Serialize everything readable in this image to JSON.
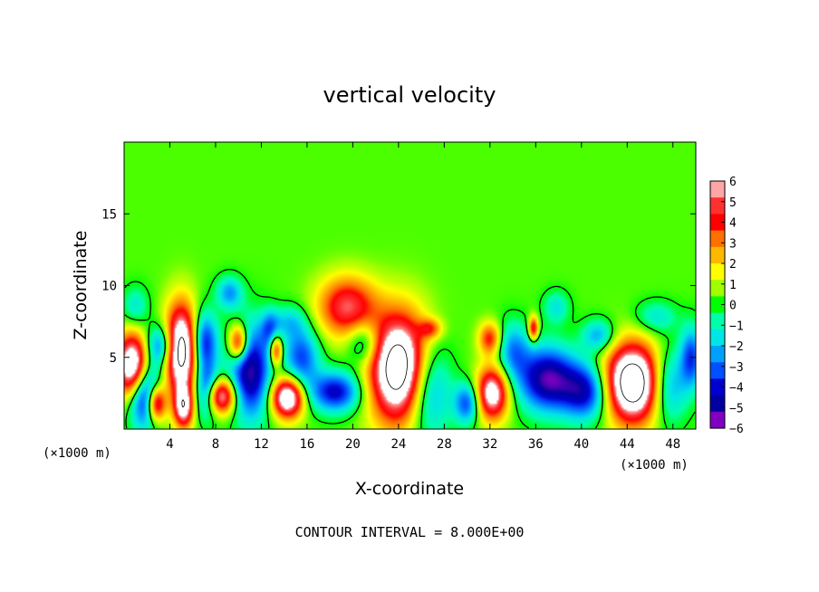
{
  "chart_data": {
    "type": "heatmap",
    "title": "vertical velocity",
    "xlabel": "X-coordinate",
    "ylabel": "Z-coordinate",
    "x_unit_left": "(×1000 m)",
    "x_unit_right": "(×1000 m)",
    "xlim": [
      0,
      50
    ],
    "ylim": [
      0,
      20
    ],
    "xticks": [
      4,
      8,
      12,
      16,
      20,
      24,
      28,
      32,
      36,
      40,
      44,
      48
    ],
    "yticks": [
      5,
      10,
      15
    ],
    "colorbar": {
      "min": -6,
      "max": 6,
      "ticks": [
        6,
        5,
        4,
        3,
        2,
        1,
        0,
        -1,
        -2,
        -3,
        -4,
        -5,
        -6
      ],
      "colors": [
        "#ffa5a5",
        "#ff3030",
        "#ff0000",
        "#ff7000",
        "#ffb800",
        "#ffff00",
        "#a0ff00",
        "#00ff00",
        "#00ffaa",
        "#00e6e6",
        "#00a0ff",
        "#0050ff",
        "#0000d0",
        "#0000a0",
        "#8000c0"
      ]
    },
    "background_value": 0.4,
    "features": [
      {
        "type": "updraft",
        "x": 0.8,
        "y": 4.3,
        "sx": 1.0,
        "sy": 1.6,
        "amp": 9
      },
      {
        "type": "updraft",
        "x": 2.8,
        "y": 1.8,
        "sx": 0.6,
        "sy": 0.9,
        "amp": 7
      },
      {
        "type": "updraft",
        "x": 5.0,
        "y": 5.5,
        "sx": 1.0,
        "sy": 2.2,
        "amp": 9
      },
      {
        "type": "updraft",
        "x": 5.2,
        "y": 1.5,
        "sx": 0.6,
        "sy": 1.0,
        "amp": 6
      },
      {
        "type": "updraft",
        "x": 8.3,
        "y": 2.3,
        "sx": 1.0,
        "sy": 0.9,
        "amp": 8
      },
      {
        "type": "updraft",
        "x": 10.0,
        "y": 6.0,
        "sx": 0.6,
        "sy": 0.9,
        "amp": 6
      },
      {
        "type": "updraft",
        "x": 13.3,
        "y": 5.5,
        "sx": 0.4,
        "sy": 0.8,
        "amp": 5
      },
      {
        "type": "updraft",
        "x": 14.3,
        "y": 2.2,
        "sx": 1.0,
        "sy": 1.0,
        "amp": 8
      },
      {
        "type": "updraft",
        "x": 19.5,
        "y": 8.5,
        "sx": 1.8,
        "sy": 1.5,
        "amp": 5
      },
      {
        "type": "updraft",
        "x": 24.2,
        "y": 4.2,
        "sx": 1.9,
        "sy": 2.6,
        "amp": 10
      },
      {
        "type": "updraft",
        "x": 32.2,
        "y": 2.5,
        "sx": 1.0,
        "sy": 1.3,
        "amp": 7
      },
      {
        "type": "updraft",
        "x": 32.0,
        "y": 6.3,
        "sx": 0.7,
        "sy": 0.8,
        "amp": 4
      },
      {
        "type": "updraft",
        "x": 35.8,
        "y": 7.0,
        "sx": 0.3,
        "sy": 0.6,
        "amp": 5
      },
      {
        "type": "updraft",
        "x": 44.5,
        "y": 3.2,
        "sx": 1.8,
        "sy": 1.9,
        "amp": 10
      },
      {
        "type": "updraft",
        "x": 26.8,
        "y": 7.0,
        "sx": 0.7,
        "sy": 0.5,
        "amp": 3
      },
      {
        "type": "downdraft",
        "x": 1.8,
        "y": 2.5,
        "sx": 1.0,
        "sy": 1.6,
        "amp": -7
      },
      {
        "type": "downdraft",
        "x": 3.2,
        "y": 5.8,
        "sx": 0.9,
        "sy": 1.0,
        "amp": -4
      },
      {
        "type": "downdraft",
        "x": 7.0,
        "y": 6.0,
        "sx": 0.8,
        "sy": 1.5,
        "amp": -5
      },
      {
        "type": "downdraft",
        "x": 7.3,
        "y": 2.5,
        "sx": 0.8,
        "sy": 1.2,
        "amp": -6
      },
      {
        "type": "downdraft",
        "x": 9.2,
        "y": 9.5,
        "sx": 0.8,
        "sy": 0.8,
        "amp": -3
      },
      {
        "type": "downdraft",
        "x": 11.0,
        "y": 4.0,
        "sx": 1.3,
        "sy": 2.3,
        "amp": -6
      },
      {
        "type": "downdraft",
        "x": 12.8,
        "y": 7.0,
        "sx": 0.6,
        "sy": 0.9,
        "amp": -3
      },
      {
        "type": "downdraft",
        "x": 15.5,
        "y": 5.0,
        "sx": 1.1,
        "sy": 1.5,
        "amp": -4
      },
      {
        "type": "downdraft",
        "x": 18.5,
        "y": 2.6,
        "sx": 1.6,
        "sy": 1.0,
        "amp": -5
      },
      {
        "type": "downdraft",
        "x": 21.0,
        "y": 6.0,
        "sx": 1.0,
        "sy": 1.1,
        "amp": -3
      },
      {
        "type": "downdraft",
        "x": 26.5,
        "y": 3.0,
        "sx": 1.4,
        "sy": 2.4,
        "amp": -5
      },
      {
        "type": "downdraft",
        "x": 30.0,
        "y": 1.8,
        "sx": 0.8,
        "sy": 1.0,
        "amp": -4
      },
      {
        "type": "downdraft",
        "x": 34.0,
        "y": 5.5,
        "sx": 1.0,
        "sy": 1.4,
        "amp": -3
      },
      {
        "type": "downdraft",
        "x": 37.0,
        "y": 3.5,
        "sx": 1.8,
        "sy": 1.6,
        "amp": -6
      },
      {
        "type": "downdraft",
        "x": 40.5,
        "y": 2.6,
        "sx": 1.5,
        "sy": 1.4,
        "amp": -5
      },
      {
        "type": "downdraft",
        "x": 41.5,
        "y": 6.5,
        "sx": 1.0,
        "sy": 0.8,
        "amp": -3
      },
      {
        "type": "downdraft",
        "x": 47.5,
        "y": 3.0,
        "sx": 1.2,
        "sy": 1.8,
        "amp": -4
      },
      {
        "type": "downdraft",
        "x": 49.6,
        "y": 5.0,
        "sx": 0.7,
        "sy": 1.5,
        "amp": -4
      },
      {
        "type": "downdraft",
        "x": 46.5,
        "y": 7.8,
        "sx": 1.3,
        "sy": 0.8,
        "amp": -2
      },
      {
        "type": "downdraft",
        "x": 37.8,
        "y": 8.5,
        "sx": 0.8,
        "sy": 0.8,
        "amp": -2
      },
      {
        "type": "downdraft",
        "x": 1.0,
        "y": 8.5,
        "sx": 0.8,
        "sy": 1.0,
        "amp": -2
      },
      {
        "type": "downdraft",
        "x": 14.5,
        "y": 7.5,
        "sx": 1.0,
        "sy": 0.8,
        "amp": -2
      }
    ],
    "contour_interval_note": "CONTOUR INTERVAL = 8.000E+00"
  }
}
